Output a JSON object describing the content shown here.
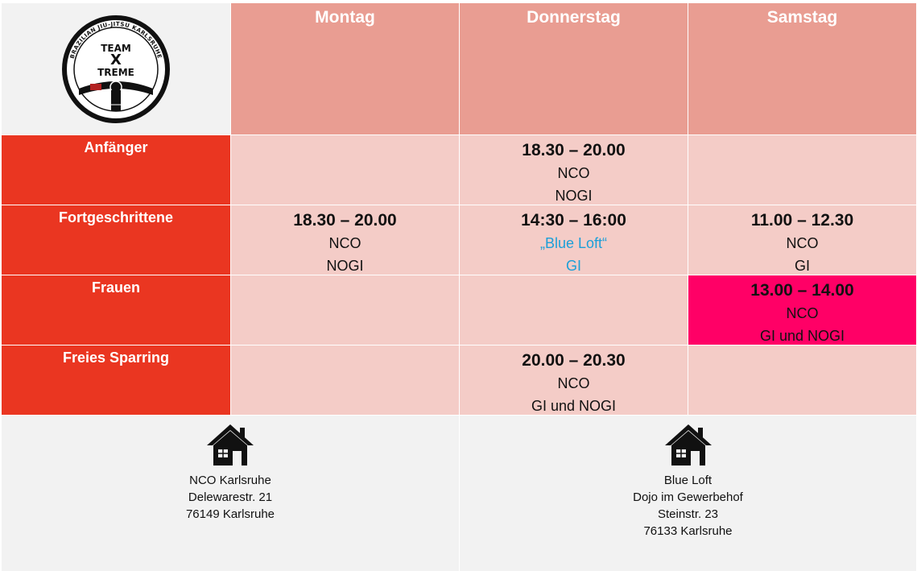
{
  "logo": {
    "text_top": "TEAM",
    "text_x": "X",
    "text_bottom": "TREME",
    "ring_text": "BRAZILIAN JIU-JITSU KARLSRUHE"
  },
  "days": [
    "Montag",
    "Donnerstag",
    "Samstag"
  ],
  "rows": [
    {
      "category": "Anfänger",
      "slots": [
        null,
        {
          "time": "18.30 – 20.00",
          "place": "NCO",
          "style": "NOGI"
        },
        null
      ]
    },
    {
      "category": "Fortgeschrittene",
      "slots": [
        {
          "time": "18.30 – 20.00",
          "place": "NCO",
          "style": "NOGI"
        },
        {
          "time": "14:30 – 16:00",
          "place": "„Blue Loft“",
          "style": "GI"
        },
        {
          "time": "11.00 – 12.30",
          "place": "NCO",
          "style": "GI"
        }
      ]
    },
    {
      "category": "Frauen",
      "slots": [
        null,
        null,
        {
          "time": "13.00 – 14.00",
          "place": "NCO",
          "style": "GI und NOGI"
        }
      ]
    },
    {
      "category": "Freies Sparring",
      "slots": [
        null,
        {
          "time": "20.00 – 20.30",
          "place": "NCO",
          "style": "GI und NOGI"
        },
        null
      ]
    }
  ],
  "colors": {
    "header": "#e99d92",
    "category": "#ea3621",
    "slot": "#f4ccc7",
    "highlight": "#ff0066",
    "blue_loft": "#1c9fd8",
    "footer": "#f2f2f2"
  },
  "locations": [
    {
      "icon": "house-icon",
      "lines": [
        "NCO Karlsruhe",
        "Delewarestr. 21",
        "76149 Karlsruhe"
      ]
    },
    {
      "icon": "house-icon",
      "lines": [
        "Blue Loft",
        "Dojo im Gewerbehof",
        "Steinstr. 23",
        "76133 Karlsruhe"
      ]
    }
  ]
}
